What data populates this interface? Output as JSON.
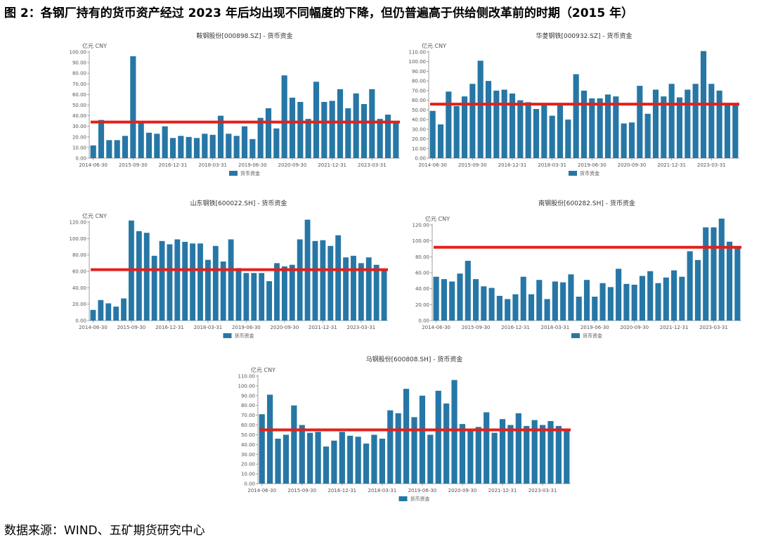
{
  "figure": {
    "title": "图 2：各钢厂持有的货币资产经过 2023 年后均出现不同幅度的下降，但仍普遍高于供给侧改革前的时期（2015 年）",
    "source": "数据来源：WIND、五矿期货研究中心"
  },
  "colors": {
    "bar": "#2677a6",
    "reference_line": "#e3201b",
    "axis": "#888888",
    "text": "#333333"
  },
  "chart_data": [
    {
      "type": "bar",
      "title": "鞍钢股份[000898.SZ] - 货币资金",
      "unit_label": "亿元  CNY",
      "legend": "货币资金",
      "ylim": [
        0,
        100
      ],
      "yticks": [
        "0.00",
        "10.00",
        "20.00",
        "30.00",
        "40.00",
        "50.00",
        "60.00",
        "70.00",
        "80.00",
        "90.00",
        "100.00"
      ],
      "xtick_labels": [
        "2014-06-30",
        "2015-09-30",
        "2016-12-31",
        "2018-03-31",
        "2019-06-30",
        "2020-09-30",
        "2021-12-31",
        "2023-03-31"
      ],
      "reference_line": 34,
      "values": [
        12,
        36,
        17,
        17,
        21,
        96,
        34,
        24,
        23,
        30,
        19,
        21,
        20,
        19,
        23,
        22,
        40,
        23,
        21,
        30,
        18,
        38,
        47,
        28,
        78,
        57,
        53,
        37,
        72,
        53,
        54,
        65,
        47,
        61,
        51,
        65,
        37,
        41,
        33
      ]
    },
    {
      "type": "bar",
      "title": "华菱钢铁[000932.SZ] - 货币资金",
      "unit_label": "亿元  CNY",
      "legend": "货币资金",
      "ylim": [
        0,
        110
      ],
      "yticks": [
        "0.00",
        "10.00",
        "20.00",
        "30.00",
        "40.00",
        "50.00",
        "60.00",
        "70.00",
        "80.00",
        "90.00",
        "100.00",
        "110.00"
      ],
      "xtick_labels": [
        "2014-06-30",
        "2015-09-30",
        "2016-12-31",
        "2018-03-31",
        "2019-06-30",
        "2020-09-30",
        "2021-12-31",
        "2023-03-31"
      ],
      "reference_line": 56,
      "values": [
        49,
        35,
        69,
        54,
        64,
        77,
        101,
        80,
        70,
        71,
        67,
        60,
        58,
        51,
        55,
        44,
        55,
        40,
        87,
        70,
        62,
        62,
        66,
        64,
        36,
        37,
        75,
        46,
        71,
        64,
        77,
        63,
        71,
        77,
        111,
        77,
        70,
        55,
        56
      ]
    },
    {
      "type": "bar",
      "title": "山东钢铁[600022.SH] - 货币资金",
      "unit_label": "亿元  CNY",
      "legend": "货币资金",
      "ylim": [
        0,
        120
      ],
      "yticks": [
        "0.00",
        "20.00",
        "40.00",
        "60.00",
        "80.00",
        "100.00",
        "120.00"
      ],
      "xtick_labels": [
        "2014-06-30",
        "2015-09-30",
        "2016-12-31",
        "2018-03-31",
        "2019-06-30",
        "2020-09-30",
        "2021-12-31",
        "2023-03-31"
      ],
      "reference_line": 62,
      "values": [
        13,
        25,
        21,
        17,
        27,
        122,
        109,
        107,
        79,
        97,
        93,
        99,
        96,
        94,
        94,
        74,
        91,
        72,
        99,
        64,
        58,
        58,
        58,
        48,
        70,
        66,
        68,
        99,
        123,
        97,
        98,
        91,
        104,
        77,
        79,
        70,
        77,
        68,
        62
      ]
    },
    {
      "type": "bar",
      "title": "南钢股份[600282.SH] - 货币资金",
      "unit_label": "亿元  CNY",
      "legend": "货币资金",
      "ylim": [
        0,
        120
      ],
      "yticks": [
        "0.00",
        "20.00",
        "40.00",
        "60.00",
        "80.00",
        "100.00",
        "120.00"
      ],
      "xtick_labels": [
        "2014-06-30",
        "2015-09-30",
        "2016-12-31",
        "2018-03-31",
        "2019-06-30",
        "2020-09-30",
        "2021-12-31",
        "2023-03-31"
      ],
      "reference_line": 92,
      "values": [
        55,
        52,
        49,
        59,
        75,
        52,
        43,
        41,
        31,
        27,
        33,
        55,
        33,
        51,
        27,
        49,
        48,
        58,
        30,
        51,
        30,
        47,
        42,
        65,
        46,
        45,
        56,
        62,
        47,
        54,
        63,
        55,
        87,
        76,
        117,
        117,
        128,
        99,
        92
      ]
    },
    {
      "type": "bar",
      "title": "马钢股份[600808.SH] - 货币资金",
      "unit_label": "亿元  CNY",
      "legend": "货币资金",
      "ylim": [
        0,
        110
      ],
      "yticks": [
        "0.00",
        "10.00",
        "20.00",
        "30.00",
        "40.00",
        "50.00",
        "60.00",
        "70.00",
        "80.00",
        "90.00",
        "100.00",
        "110.00"
      ],
      "xtick_labels": [
        "2014-06-30",
        "2015-09-30",
        "2016-12-31",
        "2018-03-31",
        "2019-06-30",
        "2020-09-30",
        "2021-12-31",
        "2023-03-31"
      ],
      "reference_line": 55,
      "values": [
        71,
        91,
        46,
        50,
        80,
        60,
        52,
        53,
        38,
        44,
        53,
        49,
        48,
        41,
        50,
        46,
        75,
        72,
        97,
        68,
        90,
        50,
        95,
        82,
        106,
        61,
        54,
        58,
        73,
        52,
        66,
        60,
        72,
        59,
        65,
        60,
        64,
        59,
        55
      ]
    }
  ]
}
